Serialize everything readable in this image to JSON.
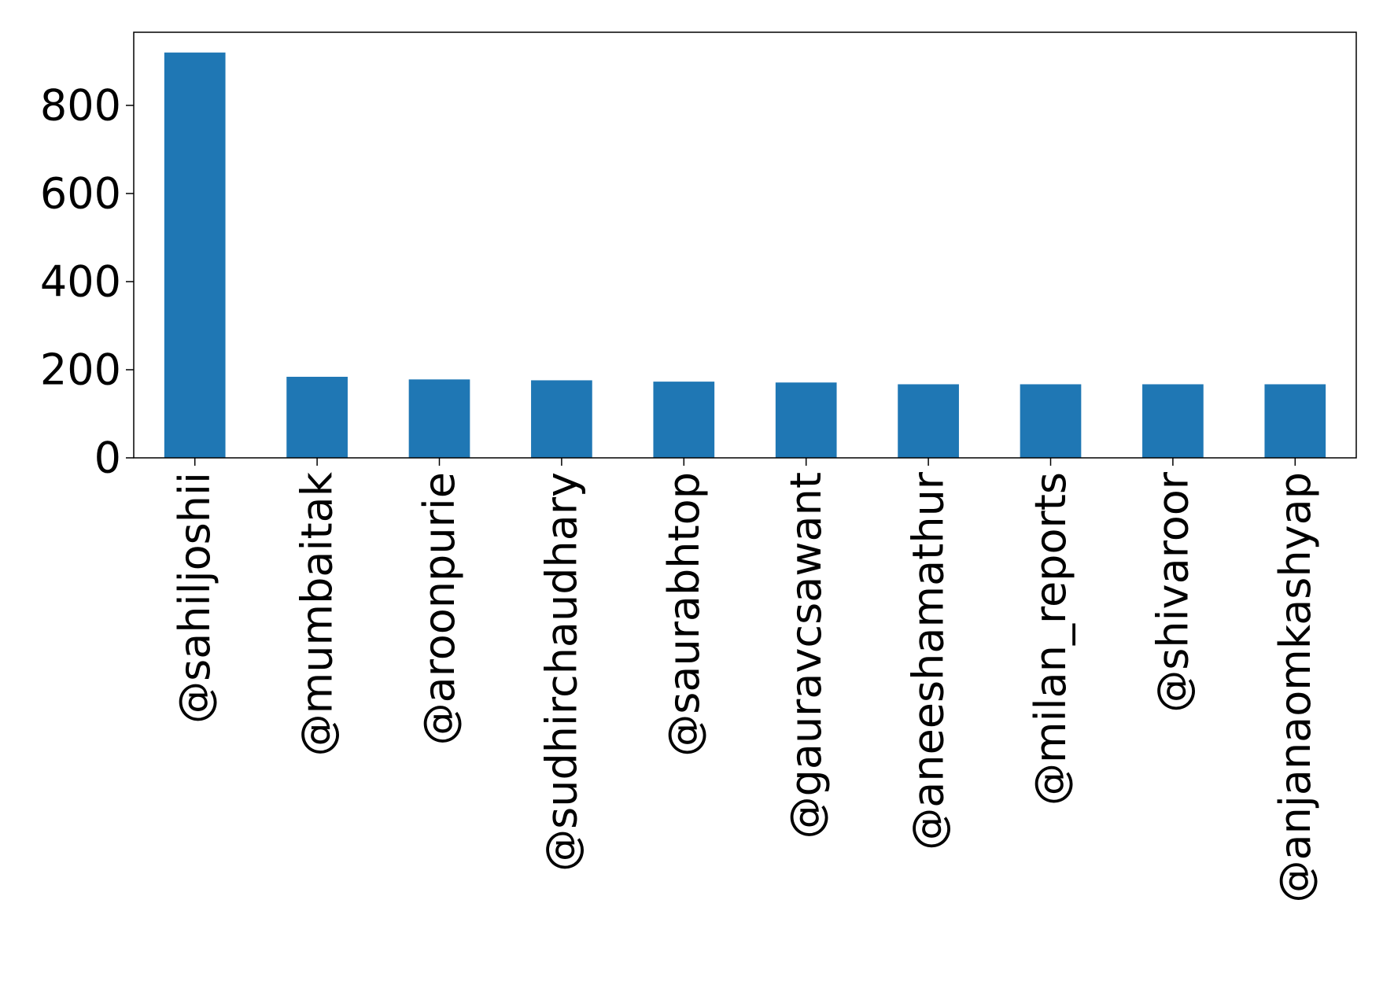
{
  "chart_data": {
    "type": "bar",
    "title": "",
    "xlabel": "",
    "ylabel": "",
    "categories": [
      "@sahiljoshii",
      "@mumbaitak",
      "@aroonpurie",
      "@sudhirchaudhary",
      "@saurabhtop",
      "@gauravcsawant",
      "@aneeshamathur",
      "@milan_reports",
      "@shivaroor",
      "@anjanaomkashyap"
    ],
    "values": [
      920,
      184,
      178,
      176,
      173,
      171,
      167,
      167,
      167,
      167
    ],
    "ylim": [
      0,
      966
    ],
    "yticks": [
      0,
      200,
      400,
      600,
      800
    ],
    "ytick_labels": [
      "0",
      "200",
      "400",
      "600",
      "800"
    ],
    "grid": false,
    "bar_color": "#1f77b4"
  }
}
